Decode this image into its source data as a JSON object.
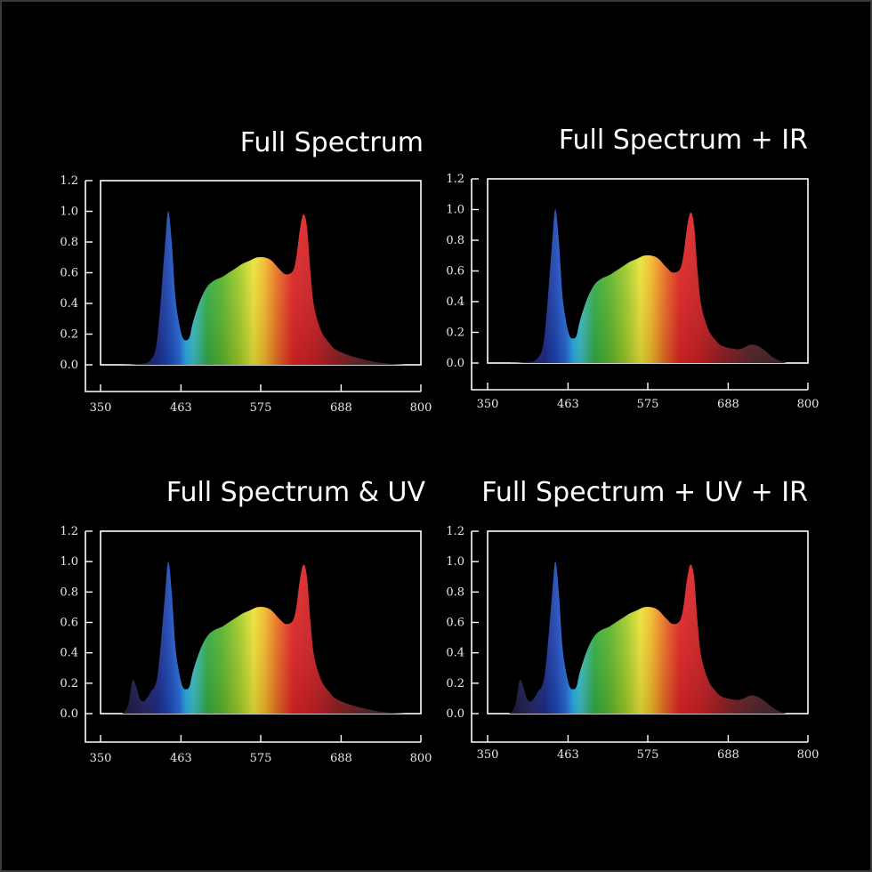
{
  "chart_data": [
    {
      "type": "area",
      "title": "Full Spectrum",
      "ylim": [
        0,
        1.2
      ],
      "xlim": [
        350,
        800
      ],
      "y_ticks": [
        "1.2",
        "1.0",
        "0.8",
        "0.6",
        "0.4",
        "0.2",
        "0.0"
      ],
      "x_ticks": [
        "350",
        "463",
        "575",
        "688",
        "800"
      ],
      "series": [
        {
          "x": [
            380,
            400,
            420,
            430,
            440,
            445,
            450,
            455,
            460,
            465,
            470,
            475,
            480,
            490,
            500,
            510,
            520,
            530,
            540,
            550,
            560,
            570,
            580,
            590,
            600,
            610,
            620,
            625,
            630,
            635,
            640,
            645,
            650,
            660,
            670,
            680,
            700,
            720,
            740,
            760,
            780
          ],
          "y": [
            0,
            0.005,
            0.03,
            0.18,
            0.75,
            1.0,
            0.8,
            0.45,
            0.28,
            0.18,
            0.16,
            0.18,
            0.28,
            0.42,
            0.51,
            0.55,
            0.57,
            0.6,
            0.63,
            0.66,
            0.68,
            0.7,
            0.7,
            0.68,
            0.63,
            0.59,
            0.61,
            0.7,
            0.88,
            0.98,
            0.9,
            0.6,
            0.38,
            0.22,
            0.15,
            0.1,
            0.06,
            0.035,
            0.015,
            0.006,
            0.0
          ]
        }
      ]
    },
    {
      "type": "area",
      "title": "Full Spectrum + IR",
      "ylim": [
        0,
        1.2
      ],
      "xlim": [
        350,
        800
      ],
      "y_ticks": [
        "1.2",
        "1.0",
        "0.8",
        "0.6",
        "0.4",
        "0.2",
        "0.0"
      ],
      "x_ticks": [
        "350",
        "463",
        "575",
        "688",
        "800"
      ],
      "series": [
        {
          "x": [
            380,
            400,
            420,
            430,
            440,
            445,
            450,
            455,
            460,
            465,
            470,
            475,
            480,
            490,
            500,
            510,
            520,
            530,
            540,
            550,
            560,
            570,
            580,
            590,
            600,
            610,
            620,
            625,
            630,
            635,
            640,
            645,
            650,
            660,
            670,
            680,
            700,
            710,
            720,
            730,
            740,
            750,
            760,
            770
          ],
          "y": [
            0,
            0.005,
            0.03,
            0.18,
            0.75,
            1.0,
            0.8,
            0.45,
            0.28,
            0.18,
            0.16,
            0.18,
            0.28,
            0.42,
            0.51,
            0.55,
            0.57,
            0.6,
            0.63,
            0.66,
            0.68,
            0.7,
            0.7,
            0.68,
            0.63,
            0.59,
            0.61,
            0.7,
            0.88,
            0.98,
            0.9,
            0.6,
            0.38,
            0.22,
            0.15,
            0.11,
            0.09,
            0.1,
            0.12,
            0.11,
            0.08,
            0.04,
            0.015,
            0.0
          ]
        }
      ]
    },
    {
      "type": "area",
      "title": "Full Spectrum & UV",
      "ylim": [
        0,
        1.2
      ],
      "xlim": [
        350,
        800
      ],
      "y_ticks": [
        "1.2",
        "1.0",
        "0.8",
        "0.6",
        "0.4",
        "0.2",
        "0.0"
      ],
      "x_ticks": [
        "350",
        "463",
        "575",
        "688",
        "800"
      ],
      "series": [
        {
          "x": [
            380,
            385,
            390,
            395,
            400,
            405,
            410,
            415,
            420,
            430,
            440,
            445,
            450,
            455,
            460,
            465,
            470,
            475,
            480,
            490,
            500,
            510,
            520,
            530,
            540,
            550,
            560,
            570,
            580,
            590,
            600,
            610,
            620,
            625,
            630,
            635,
            640,
            645,
            650,
            660,
            670,
            680,
            700,
            720,
            740,
            760,
            780
          ],
          "y": [
            0,
            0.02,
            0.08,
            0.22,
            0.18,
            0.1,
            0.08,
            0.1,
            0.14,
            0.25,
            0.75,
            1.0,
            0.8,
            0.45,
            0.28,
            0.18,
            0.16,
            0.18,
            0.28,
            0.42,
            0.51,
            0.55,
            0.57,
            0.6,
            0.63,
            0.66,
            0.68,
            0.7,
            0.7,
            0.68,
            0.63,
            0.59,
            0.61,
            0.7,
            0.88,
            0.98,
            0.9,
            0.6,
            0.38,
            0.22,
            0.15,
            0.1,
            0.06,
            0.035,
            0.015,
            0.006,
            0.0
          ]
        }
      ]
    },
    {
      "type": "area",
      "title": "Full Spectrum + UV + IR",
      "ylim": [
        0,
        1.2
      ],
      "xlim": [
        350,
        800
      ],
      "y_ticks": [
        "1.2",
        "1.0",
        "0.8",
        "0.6",
        "0.4",
        "0.2",
        "0.0"
      ],
      "x_ticks": [
        "350",
        "463",
        "575",
        "688",
        "800"
      ],
      "series": [
        {
          "x": [
            380,
            385,
            390,
            395,
            400,
            405,
            410,
            415,
            420,
            430,
            440,
            445,
            450,
            455,
            460,
            465,
            470,
            475,
            480,
            490,
            500,
            510,
            520,
            530,
            540,
            550,
            560,
            570,
            580,
            590,
            600,
            610,
            620,
            625,
            630,
            635,
            640,
            645,
            650,
            660,
            670,
            680,
            700,
            710,
            720,
            730,
            740,
            750,
            760,
            770
          ],
          "y": [
            0,
            0.02,
            0.08,
            0.22,
            0.18,
            0.1,
            0.08,
            0.1,
            0.14,
            0.25,
            0.75,
            1.0,
            0.8,
            0.45,
            0.28,
            0.18,
            0.16,
            0.18,
            0.28,
            0.42,
            0.51,
            0.55,
            0.57,
            0.6,
            0.63,
            0.66,
            0.68,
            0.7,
            0.7,
            0.68,
            0.63,
            0.59,
            0.61,
            0.7,
            0.88,
            0.98,
            0.9,
            0.6,
            0.38,
            0.22,
            0.15,
            0.11,
            0.09,
            0.1,
            0.12,
            0.11,
            0.08,
            0.04,
            0.015,
            0.0
          ]
        }
      ]
    }
  ],
  "spectrum_colors": [
    {
      "nm": 380,
      "color": "#1a1a3a"
    },
    {
      "nm": 410,
      "color": "#2a2a6a"
    },
    {
      "nm": 430,
      "color": "#1f2f8f"
    },
    {
      "nm": 445,
      "color": "#1e48b8"
    },
    {
      "nm": 460,
      "color": "#2a6ee0"
    },
    {
      "nm": 470,
      "color": "#29b6f0"
    },
    {
      "nm": 480,
      "color": "#3fc6d0"
    },
    {
      "nm": 500,
      "color": "#36b34a"
    },
    {
      "nm": 520,
      "color": "#5cbc2e"
    },
    {
      "nm": 545,
      "color": "#a8d22c"
    },
    {
      "nm": 565,
      "color": "#f2ec3a"
    },
    {
      "nm": 580,
      "color": "#fbc02d"
    },
    {
      "nm": 600,
      "color": "#f26b24"
    },
    {
      "nm": 620,
      "color": "#e52525"
    },
    {
      "nm": 650,
      "color": "#cf2127"
    },
    {
      "nm": 680,
      "color": "#9a2226"
    },
    {
      "nm": 720,
      "color": "#5e2a30"
    },
    {
      "nm": 780,
      "color": "#3a2a34"
    }
  ]
}
